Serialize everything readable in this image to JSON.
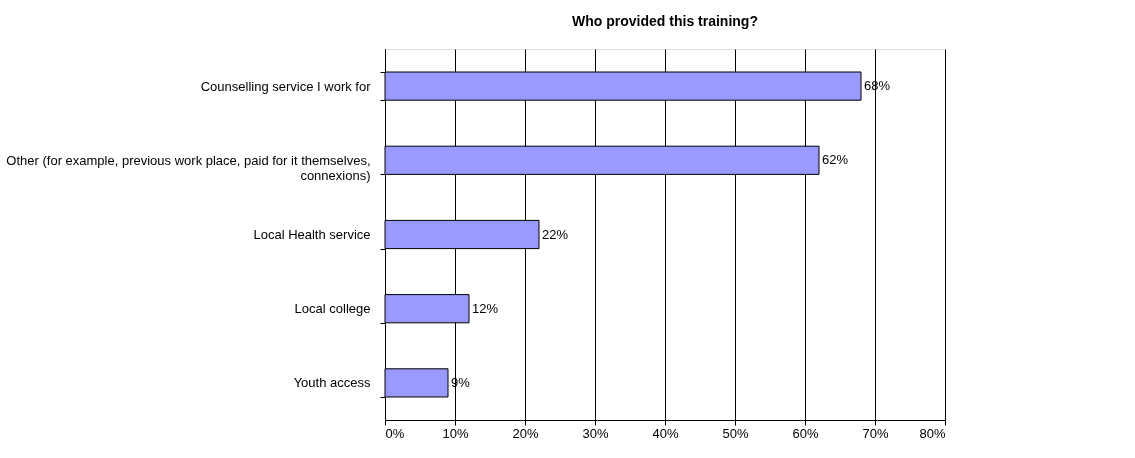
{
  "chart_data": {
    "type": "bar",
    "orientation": "horizontal",
    "title": "Who provided this training?",
    "categories": [
      "Counselling service I work for",
      "Other (for example, previous work place, paid for it themselves, connexions)",
      "Local Health service",
      "Local college",
      "Youth access"
    ],
    "values": [
      68,
      62,
      22,
      12,
      9
    ],
    "value_labels": [
      "68%",
      "62%",
      "22%",
      "12%",
      "9%"
    ],
    "color": "#9999ff",
    "xlim": [
      0,
      80
    ],
    "xticks": [
      {
        "value": 0,
        "label": "0%"
      },
      {
        "value": 10,
        "label": "10%"
      },
      {
        "value": 20,
        "label": "20%"
      },
      {
        "value": 30,
        "label": "30%"
      },
      {
        "value": 40,
        "label": "40%"
      },
      {
        "value": 50,
        "label": "50%"
      },
      {
        "value": 60,
        "label": "60%"
      },
      {
        "value": 70,
        "label": "70%"
      },
      {
        "value": 80,
        "label": "80%"
      }
    ],
    "grid": "x"
  }
}
